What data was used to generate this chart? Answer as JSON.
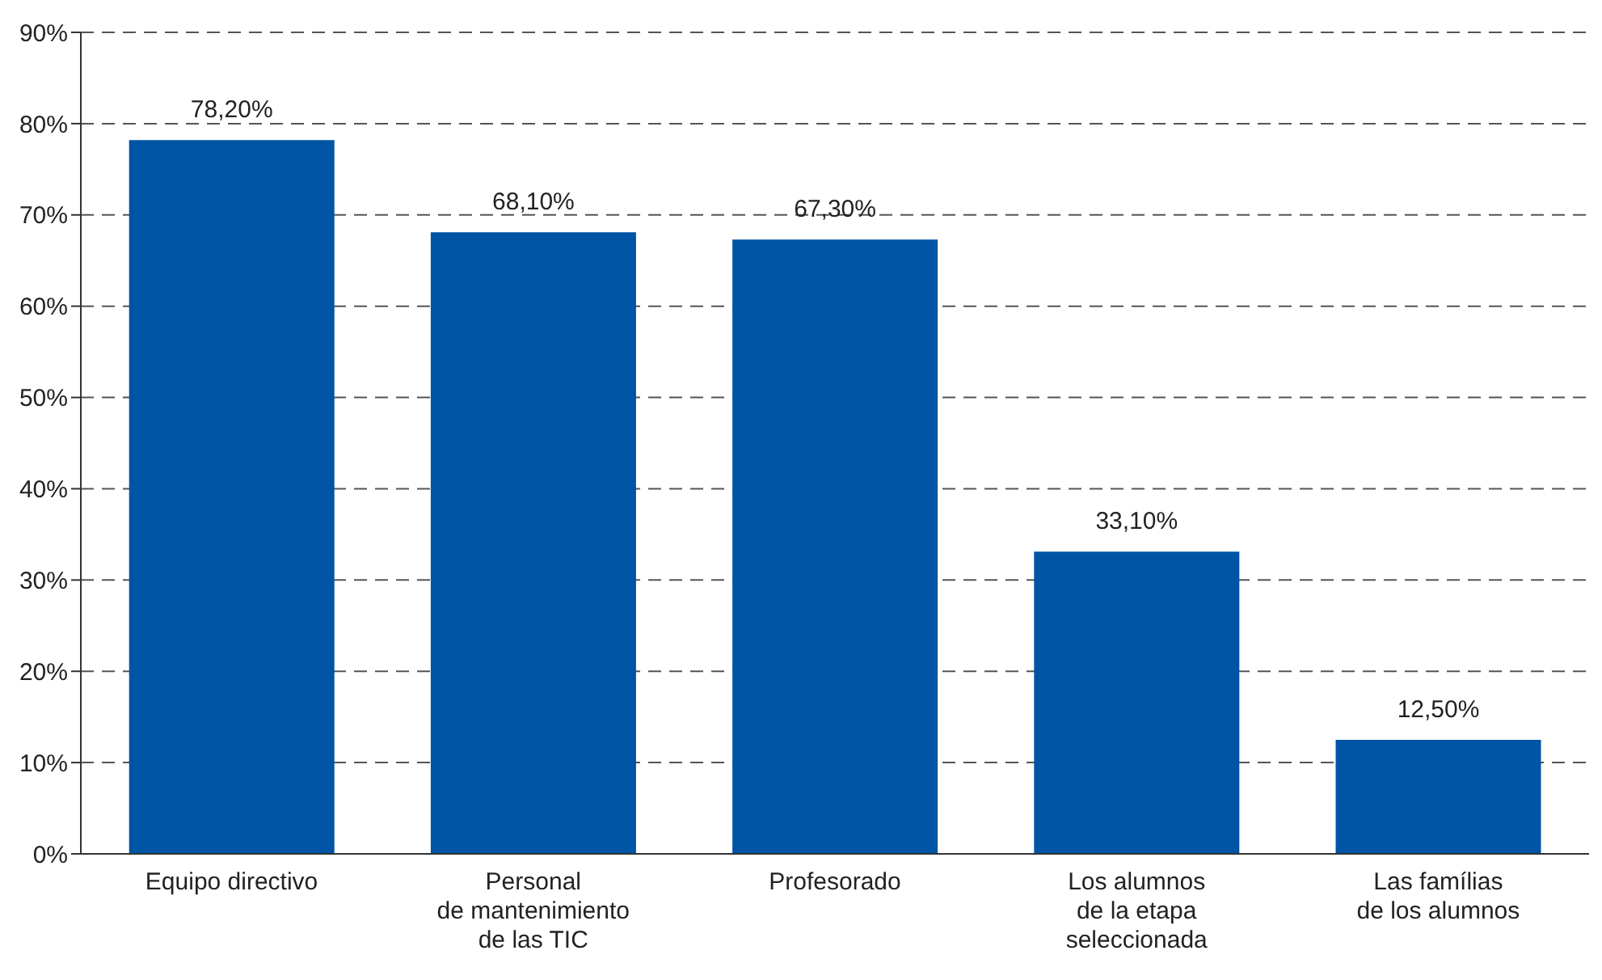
{
  "chart_data": {
    "type": "bar",
    "categories": [
      "Equipo directivo",
      "Personal\nde mantenimiento\nde las TIC",
      "Profesorado",
      "Los alumnos\nde la etapa\nseleccionada",
      "Las famílias\nde los alumnos"
    ],
    "values": [
      78.2,
      68.1,
      67.3,
      33.1,
      12.5
    ],
    "value_labels": [
      "78,20%",
      "68,10%",
      "67,30%",
      "33,10%",
      "12,50%"
    ],
    "color": "#0054a6",
    "ylim": [
      0,
      90
    ],
    "yticks": [
      {
        "value": 0,
        "label": "0%"
      },
      {
        "value": 10,
        "label": "10%"
      },
      {
        "value": 20,
        "label": "20%"
      },
      {
        "value": 30,
        "label": "30%"
      },
      {
        "value": 40,
        "label": "40%"
      },
      {
        "value": 50,
        "label": "50%"
      },
      {
        "value": 60,
        "label": "60%"
      },
      {
        "value": 70,
        "label": "70%"
      },
      {
        "value": 80,
        "label": "80%"
      },
      {
        "value": 90,
        "label": "90%"
      }
    ],
    "grid": "y",
    "line_style": "dashed"
  }
}
